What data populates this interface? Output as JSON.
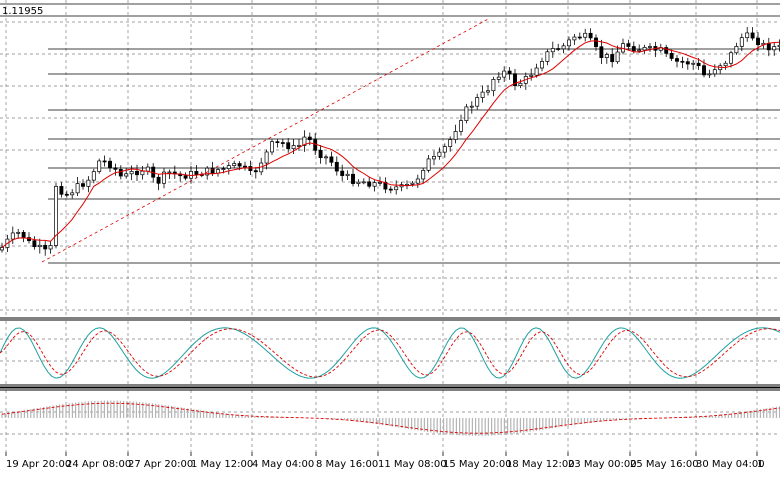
{
  "price_label": "1.11955",
  "colors": {
    "background": "#ffffff",
    "candle": "#000000",
    "moving_average": "#e00000",
    "trendline": "#e00000",
    "stochastic_main": "#20a0a0",
    "stochastic_signal": "#e00000",
    "histogram": "#b4b4b4",
    "grid": "#808080"
  },
  "chart_data": [
    {
      "type": "candlestick",
      "panel": "price",
      "moving_average": "red smoothed line",
      "trendline": "dashed red rising line",
      "horizontal_levels": 9,
      "x_tick_labels": [
        "19 Apr 20:00",
        "24 Apr 08:00",
        "27 Apr 20:00",
        "1 May 12:00",
        "4 May 04:00",
        "8 May 16:00",
        "11 May 08:00",
        "15 May 20:00",
        "18 May 12:00",
        "23 May 00:00",
        "25 May 16:00",
        "30 May 04:00",
        "1"
      ],
      "grid": true
    },
    {
      "type": "line",
      "panel": "oscillator",
      "series": [
        "solid teal",
        "dashed red"
      ],
      "grid": true
    },
    {
      "type": "bar",
      "panel": "histogram",
      "overlay": "dashed red signal line",
      "grid": true
    }
  ]
}
